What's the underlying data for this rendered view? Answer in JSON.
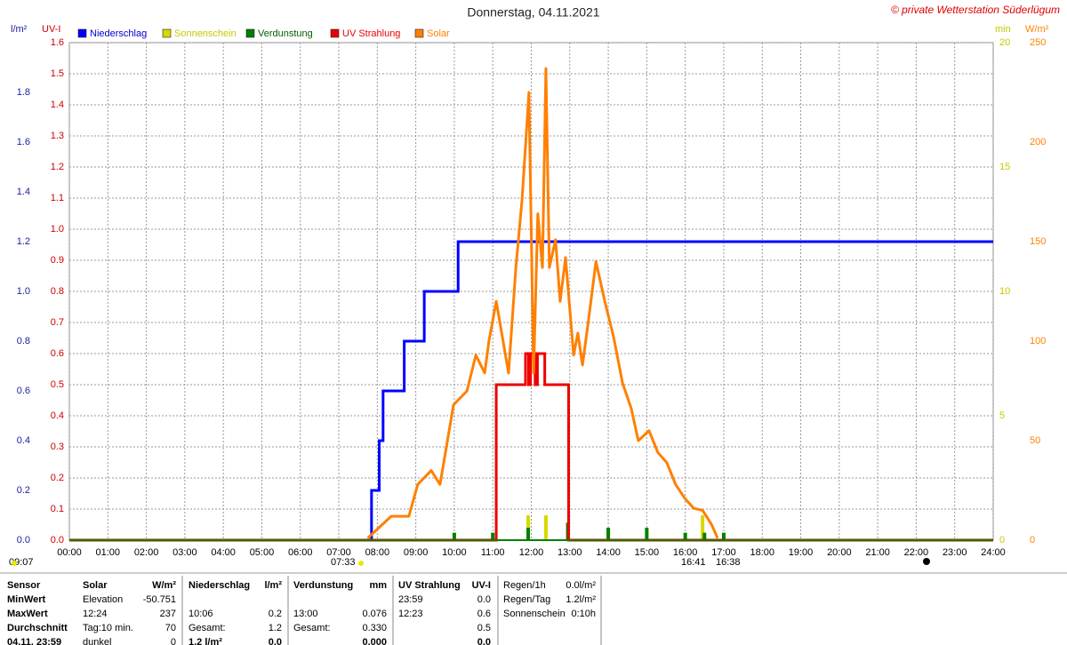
{
  "chart_data": {
    "type": "weather",
    "title": "Donnerstag, 04.11.2021",
    "copyright": "© private Wetterstation Süderlügum",
    "xlim": [
      0,
      24
    ],
    "xticks": [
      {
        "value": 0,
        "label": "00:00"
      },
      {
        "value": 1,
        "label": "01:00"
      },
      {
        "value": 2,
        "label": "02:00"
      },
      {
        "value": 3,
        "label": "03:00"
      },
      {
        "value": 4,
        "label": "04:00"
      },
      {
        "value": 5,
        "label": "05:00"
      },
      {
        "value": 6,
        "label": "06:00"
      },
      {
        "value": 7,
        "label": "07:00"
      },
      {
        "value": 8,
        "label": "08:00"
      },
      {
        "value": 9,
        "label": "09:00"
      },
      {
        "value": 10,
        "label": "10:00"
      },
      {
        "value": 11,
        "label": "11:00"
      },
      {
        "value": 12,
        "label": "12:00"
      },
      {
        "value": 13,
        "label": "13:00"
      },
      {
        "value": 14,
        "label": "14:00"
      },
      {
        "value": 15,
        "label": "15:00"
      },
      {
        "value": 16,
        "label": "16:00"
      },
      {
        "value": 17,
        "label": "17:00"
      },
      {
        "value": 18,
        "label": "18:00"
      },
      {
        "value": 19,
        "label": "19:00"
      },
      {
        "value": 20,
        "label": "20:00"
      },
      {
        "value": 21,
        "label": "21:00"
      },
      {
        "value": 22,
        "label": "22:00"
      },
      {
        "value": 23,
        "label": "23:00"
      },
      {
        "value": 24,
        "label": "24:00"
      }
    ],
    "grid": true,
    "axes": [
      {
        "label": "l/m²",
        "color": "#1c1ca8",
        "side": "left",
        "lim": [
          0,
          2
        ],
        "ticks": [
          {
            "value": 0,
            "label": "0.0"
          },
          0.2,
          0.4,
          0.6,
          0.8,
          {
            "value": 1,
            "label": "1.0"
          },
          1.2,
          1.4,
          1.6,
          1.8
        ]
      },
      {
        "label": "UV-I",
        "color": "#cc0000",
        "side": "left",
        "lim": [
          0,
          1.6
        ],
        "ticks": [
          {
            "value": 0,
            "label": "0.0"
          },
          0.1,
          0.2,
          0.3,
          0.4,
          0.5,
          0.6,
          0.7,
          0.8,
          0.9,
          {
            "value": 1,
            "label": "1.0"
          },
          1.1,
          1.2,
          1.3,
          1.4,
          1.5,
          1.6
        ]
      },
      {
        "label": "min",
        "color": "#c8c800",
        "side": "right",
        "lim": [
          0,
          20
        ],
        "ticks": [
          0,
          5,
          10,
          15,
          20
        ]
      },
      {
        "label": "W/m²",
        "color": "#ff8000",
        "side": "right",
        "lim": [
          0,
          250
        ],
        "ticks": [
          0,
          50,
          100,
          150,
          200,
          250
        ]
      }
    ],
    "series": [
      {
        "name": "Niederschlag",
        "color": "#0000ff",
        "kind": "step",
        "axis": 0,
        "x": [
          0,
          7.85,
          8.05,
          8.15,
          8.7,
          9.22,
          10.1,
          24
        ],
        "values": [
          0,
          0.2,
          0.4,
          0.6,
          0.8,
          1.0,
          1.2,
          1.2
        ]
      },
      {
        "name": "Sonnenschein",
        "color": "#d8d800",
        "kind": "bar",
        "axis": 2,
        "x": [
          11.92,
          12.38,
          16.45
        ],
        "values": [
          1,
          1,
          1
        ]
      },
      {
        "name": "Verdunstung",
        "color": "#008000",
        "kind": "bar",
        "axis": 0,
        "x": [
          10.0,
          11.0,
          11.92,
          12.95,
          14.0,
          15.0,
          16.0,
          16.5,
          17.0
        ],
        "values": [
          0.03,
          0.03,
          0.05,
          0.07,
          0.05,
          0.05,
          0.03,
          0.03,
          0.03
        ]
      },
      {
        "name": "UV Strahlung",
        "color": "#ee0000",
        "kind": "step",
        "axis": 1,
        "x": [
          0,
          11.09,
          11.85,
          11.93,
          11.98,
          12.1,
          12.16,
          12.35,
          12.97,
          24
        ],
        "values": [
          0,
          0.5,
          0.6,
          0.5,
          0.6,
          0.5,
          0.6,
          0.5,
          0,
          0
        ]
      },
      {
        "name": "Solar",
        "color": "#ff8000",
        "kind": "line",
        "axis": 3,
        "x": [
          7.75,
          8.36,
          8.82,
          9.05,
          9.4,
          9.63,
          9.98,
          10.33,
          10.56,
          10.79,
          10.9,
          11.09,
          11.25,
          11.41,
          11.6,
          11.76,
          11.94,
          12.06,
          12.17,
          12.29,
          12.38,
          12.47,
          12.63,
          12.75,
          12.89,
          13.1,
          13.21,
          13.33,
          13.49,
          13.68,
          13.91,
          14.14,
          14.37,
          14.6,
          14.78,
          15.06,
          15.29,
          15.52,
          15.75,
          15.99,
          16.22,
          16.45,
          16.68,
          16.84
        ],
        "values": [
          1,
          12,
          12,
          28,
          35,
          28,
          68,
          75,
          93,
          84,
          100,
          120,
          102,
          84,
          137,
          171,
          225,
          84,
          164,
          137,
          237,
          137,
          151,
          120,
          142,
          93,
          104,
          88,
          111,
          140,
          120,
          102,
          79,
          66,
          50,
          55,
          44,
          39,
          28,
          21,
          16,
          15,
          8,
          1
        ]
      }
    ],
    "annotations": [
      "09:07",
      "07:33",
      "16:41",
      "16:38"
    ]
  },
  "table": {
    "sections": [
      {
        "header": [
          "Sensor"
        ],
        "rows": [
          [
            "MinWert"
          ],
          [
            "MaxWert"
          ],
          [
            "Durchschnitt"
          ],
          [
            "04.11. 23:59"
          ]
        ]
      },
      {
        "header": [
          "Solar",
          "W/m²"
        ],
        "rows": [
          [
            "Elevation",
            "-50.751"
          ],
          [
            "12:24",
            "237"
          ],
          [
            "Tag:10 min.",
            "70"
          ],
          [
            "dunkel",
            "0"
          ]
        ]
      },
      {
        "header": [
          "Niederschlag",
          "l/m²"
        ],
        "rows": [
          [
            null,
            null
          ],
          [
            "10:06",
            "0.2"
          ],
          [
            "Gesamt:",
            "1.2"
          ],
          [
            "1.2 l/m²",
            "0.0"
          ]
        ]
      },
      {
        "header": [
          "Verdunstung",
          "mm"
        ],
        "rows": [
          [
            null,
            null
          ],
          [
            "13:00",
            "0.076"
          ],
          [
            "Gesamt:",
            "0.330"
          ],
          [
            null,
            "0.000"
          ]
        ]
      },
      {
        "header": [
          "UV Strahlung",
          "UV-I"
        ],
        "rows": [
          [
            "23:59",
            "0.0"
          ],
          [
            "12:23",
            "0.6"
          ],
          [
            null,
            "0.5"
          ],
          [
            null,
            "0.0"
          ]
        ]
      },
      {
        "header": [
          "Regen/1h",
          "0.0l/m²"
        ],
        "rows": [
          [
            "Regen/Tag",
            "1.2l/m²"
          ],
          [
            "Sonnenschein",
            "0:10h"
          ]
        ]
      }
    ]
  }
}
